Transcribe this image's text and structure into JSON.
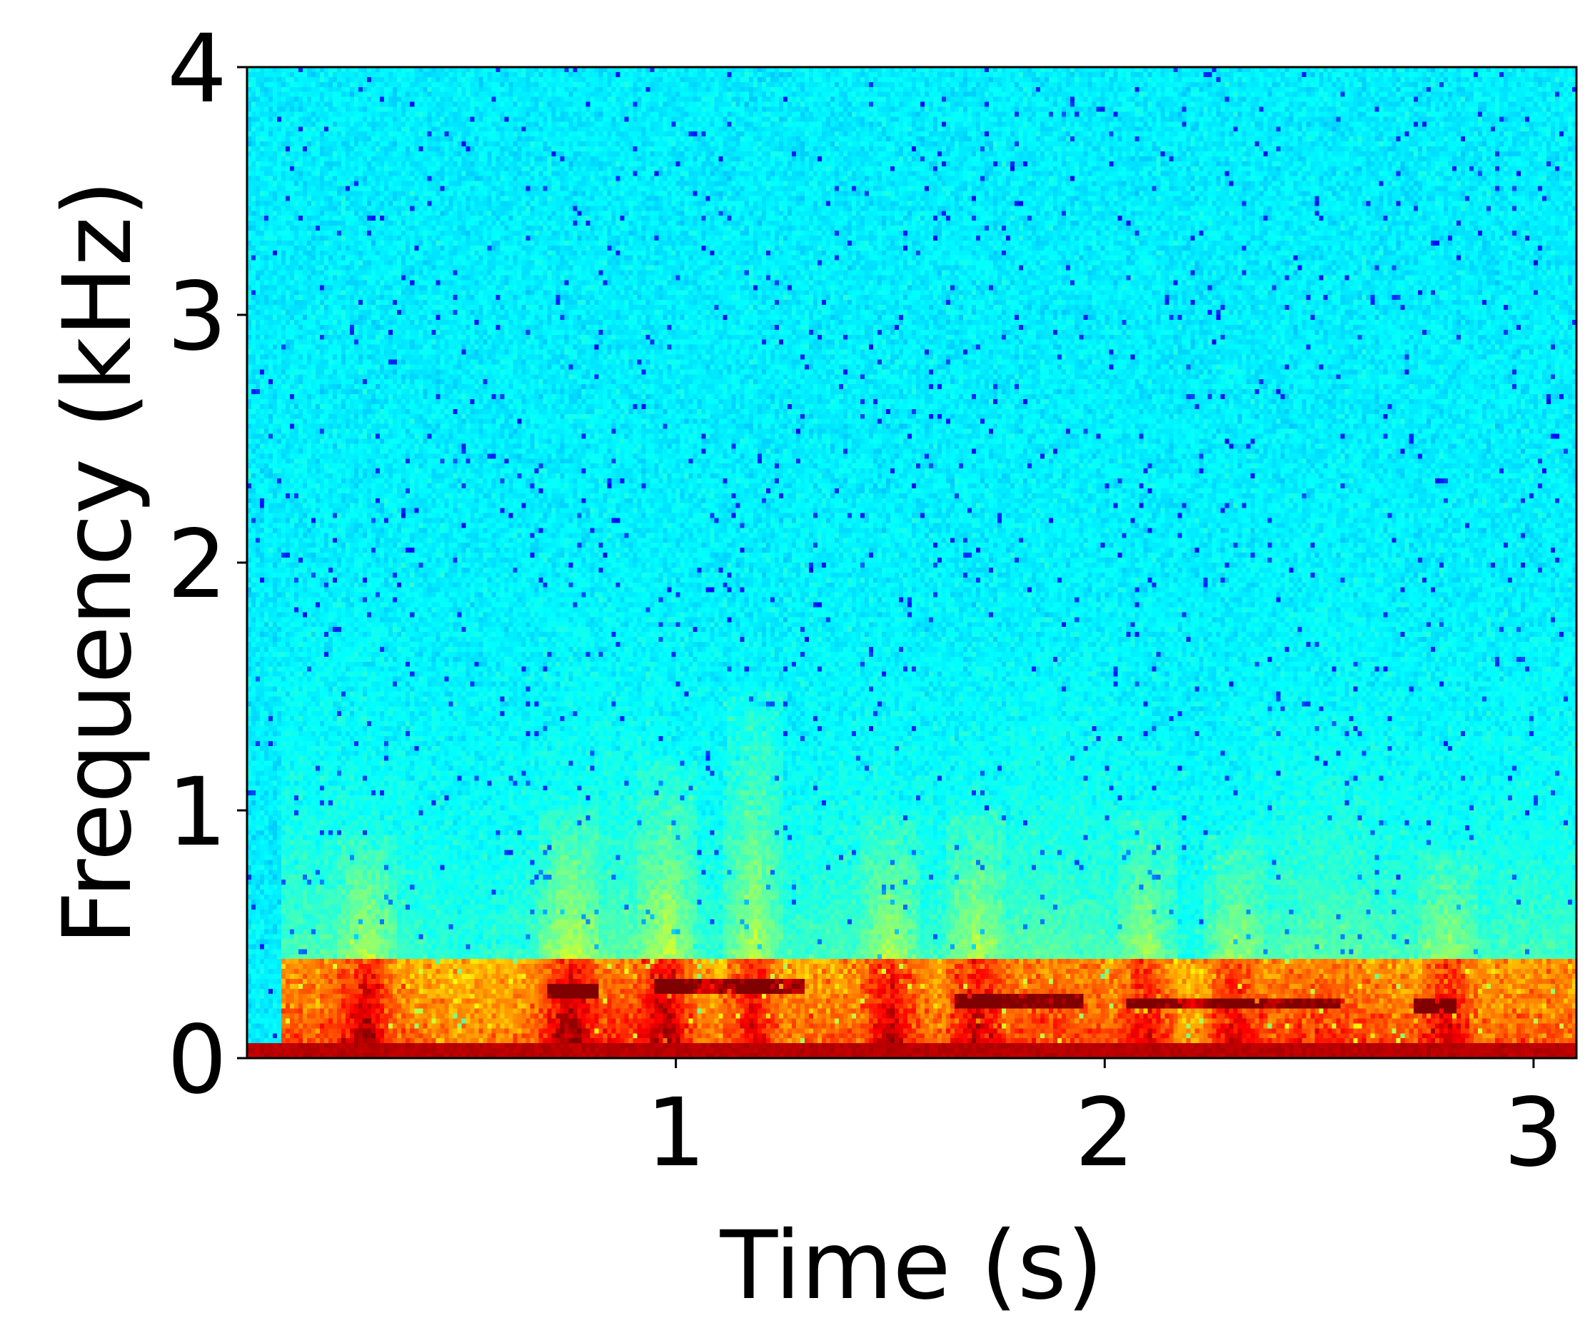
{
  "chart_data": {
    "type": "heatmap",
    "subtype": "spectrogram",
    "xlabel": "Time (s)",
    "ylabel": "Frequency (kHz)",
    "xlim": [
      0,
      3.1
    ],
    "ylim": [
      0,
      4
    ],
    "xticks": [
      {
        "value": 1,
        "label": "1"
      },
      {
        "value": 2,
        "label": "2"
      },
      {
        "value": 3,
        "label": "3"
      }
    ],
    "yticks": [
      {
        "value": 0,
        "label": "0"
      },
      {
        "value": 1,
        "label": "1"
      },
      {
        "value": 2,
        "label": "2"
      },
      {
        "value": 3,
        "label": "3"
      },
      {
        "value": 4,
        "label": "4"
      }
    ],
    "colormap": "jet",
    "grid": false,
    "legend": "none",
    "features": {
      "silent_onset_s": 0.08,
      "low_freq_band_khz": [
        0,
        0.05
      ],
      "energetic_band_khz": [
        0.05,
        0.4
      ],
      "harmonic_lines": [
        {
          "t_start": 0.7,
          "t_end": 0.82,
          "freq_khz": 0.27
        },
        {
          "t_start": 0.95,
          "t_end": 1.3,
          "freq_khz": 0.28
        },
        {
          "t_start": 1.65,
          "t_end": 1.95,
          "freq_khz": 0.23
        },
        {
          "t_start": 2.05,
          "t_end": 2.55,
          "freq_khz": 0.22
        },
        {
          "t_start": 2.72,
          "t_end": 2.82,
          "freq_khz": 0.21
        }
      ],
      "bursts": [
        {
          "t": 0.28,
          "f_max_khz": 0.9
        },
        {
          "t": 0.75,
          "f_max_khz": 1.0
        },
        {
          "t": 0.98,
          "f_max_khz": 1.2
        },
        {
          "t": 1.18,
          "f_max_khz": 1.5
        },
        {
          "t": 1.5,
          "f_max_khz": 1.0
        },
        {
          "t": 1.7,
          "f_max_khz": 1.0
        },
        {
          "t": 2.1,
          "f_max_khz": 1.0
        },
        {
          "t": 2.3,
          "f_max_khz": 0.9
        },
        {
          "t": 2.8,
          "f_max_khz": 0.85
        }
      ]
    }
  },
  "colors": {
    "frame": "#000000",
    "background": "#ffffff"
  }
}
